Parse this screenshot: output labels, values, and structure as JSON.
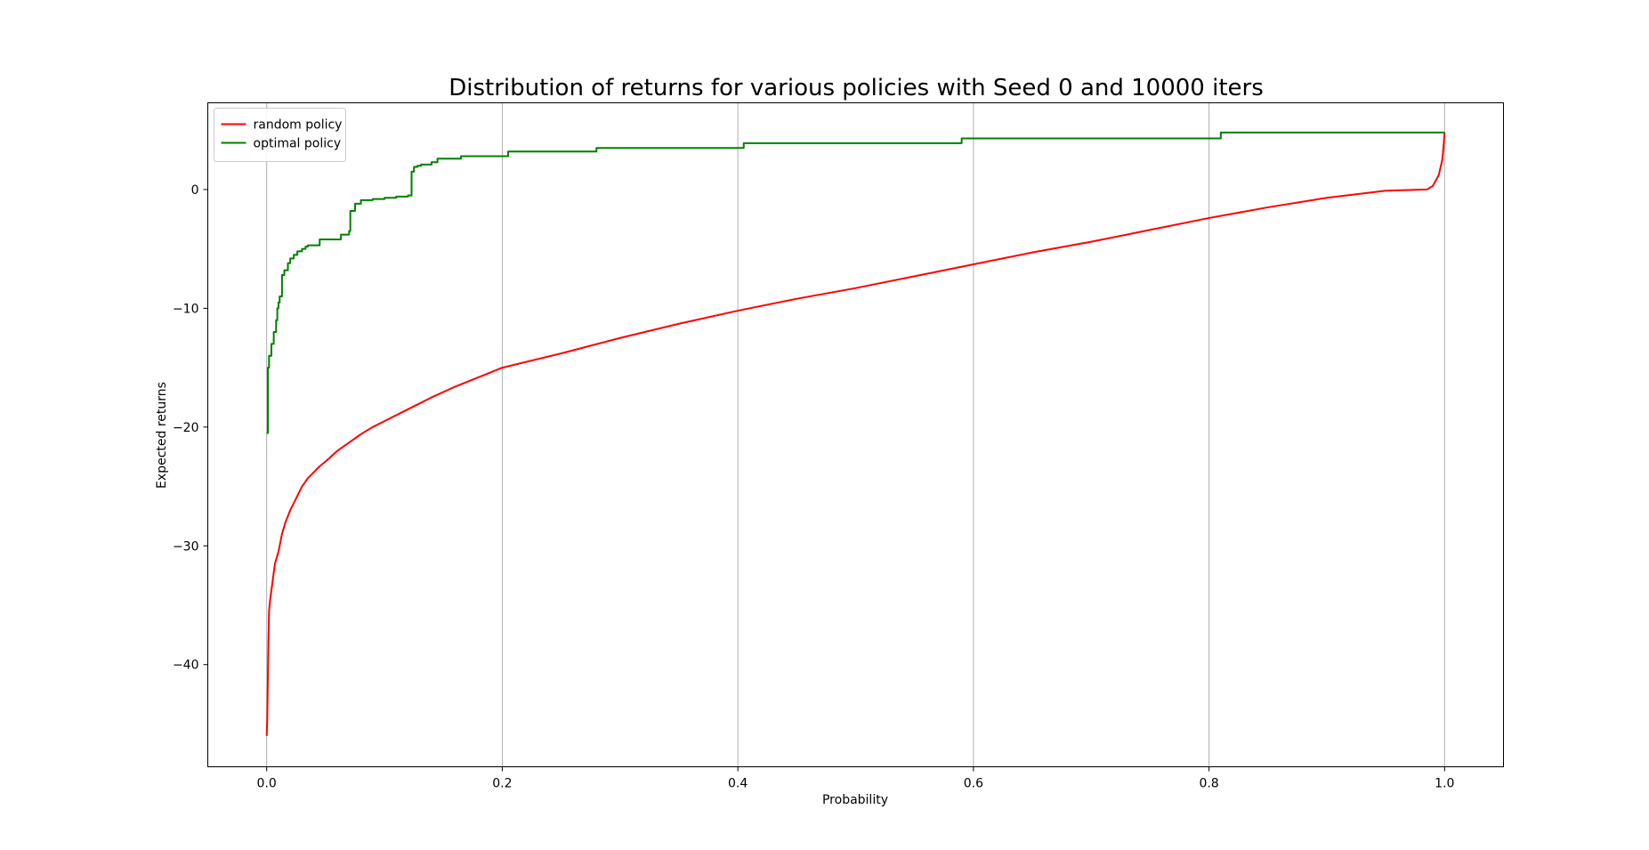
{
  "chart_data": {
    "type": "line",
    "title": "Distribution of returns for various policies with Seed 0 and 10000 iters",
    "xlabel": "Probability",
    "ylabel": "Expected returns",
    "xlim": [
      -0.05,
      1.05
    ],
    "ylim": [
      -48.6,
      7.3
    ],
    "xticks": [
      0.0,
      0.2,
      0.4,
      0.6,
      0.8,
      1.0
    ],
    "xtick_labels": [
      "0.0",
      "0.2",
      "0.4",
      "0.6",
      "0.8",
      "1.0"
    ],
    "yticks": [
      -40,
      -30,
      -20,
      -10,
      0
    ],
    "ytick_labels": [
      "−40",
      "−30",
      "−20",
      "−10",
      "0"
    ],
    "grid": "x",
    "legend": "top-left",
    "series": [
      {
        "name": "random policy",
        "color": "#ff0000",
        "step": false,
        "x": [
          0.0,
          0.0005,
          0.001,
          0.0015,
          0.002,
          0.003,
          0.005,
          0.007,
          0.01,
          0.013,
          0.016,
          0.02,
          0.025,
          0.03,
          0.035,
          0.04,
          0.045,
          0.05,
          0.06,
          0.07,
          0.08,
          0.09,
          0.1,
          0.12,
          0.14,
          0.16,
          0.18,
          0.2,
          0.25,
          0.3,
          0.35,
          0.4,
          0.45,
          0.5,
          0.55,
          0.6,
          0.65,
          0.7,
          0.75,
          0.8,
          0.85,
          0.9,
          0.95,
          0.985,
          0.99,
          0.995,
          0.998,
          0.999,
          1.0
        ],
        "y": [
          -46.0,
          -44.5,
          -41.0,
          -38.0,
          -35.5,
          -34.5,
          -33.0,
          -31.5,
          -30.5,
          -29.0,
          -28.0,
          -27.0,
          -26.0,
          -25.0,
          -24.3,
          -23.8,
          -23.3,
          -22.9,
          -22.0,
          -21.3,
          -20.6,
          -20.0,
          -19.5,
          -18.5,
          -17.5,
          -16.6,
          -15.8,
          -15.0,
          -13.8,
          -12.5,
          -11.3,
          -10.2,
          -9.2,
          -8.3,
          -7.3,
          -6.3,
          -5.3,
          -4.4,
          -3.4,
          -2.4,
          -1.5,
          -0.7,
          -0.1,
          0.0,
          0.3,
          1.2,
          2.5,
          3.5,
          4.8
        ]
      },
      {
        "name": "optimal policy",
        "color": "#008000",
        "step": true,
        "x": [
          0.0,
          0.001,
          0.002,
          0.004,
          0.006,
          0.008,
          0.009,
          0.01,
          0.011,
          0.013,
          0.015,
          0.018,
          0.02,
          0.023,
          0.026,
          0.03,
          0.033,
          0.035,
          0.042,
          0.045,
          0.06,
          0.063,
          0.066,
          0.07,
          0.071,
          0.075,
          0.08,
          0.09,
          0.1,
          0.11,
          0.12,
          0.123,
          0.125,
          0.128,
          0.131,
          0.14,
          0.145,
          0.165,
          0.205,
          0.28,
          0.405,
          0.59,
          0.81,
          1.0
        ],
        "y": [
          -20.5,
          -15.0,
          -14.0,
          -13.0,
          -12.0,
          -11.0,
          -10.0,
          -9.5,
          -9.0,
          -7.2,
          -6.8,
          -6.2,
          -5.8,
          -5.5,
          -5.2,
          -5.0,
          -4.8,
          -4.7,
          -4.7,
          -4.2,
          -4.2,
          -3.8,
          -3.8,
          -3.5,
          -1.8,
          -1.2,
          -0.9,
          -0.8,
          -0.7,
          -0.6,
          -0.5,
          1.5,
          1.9,
          2.0,
          2.1,
          2.3,
          2.6,
          2.8,
          3.2,
          3.5,
          3.9,
          4.3,
          4.8,
          4.8
        ]
      }
    ]
  }
}
